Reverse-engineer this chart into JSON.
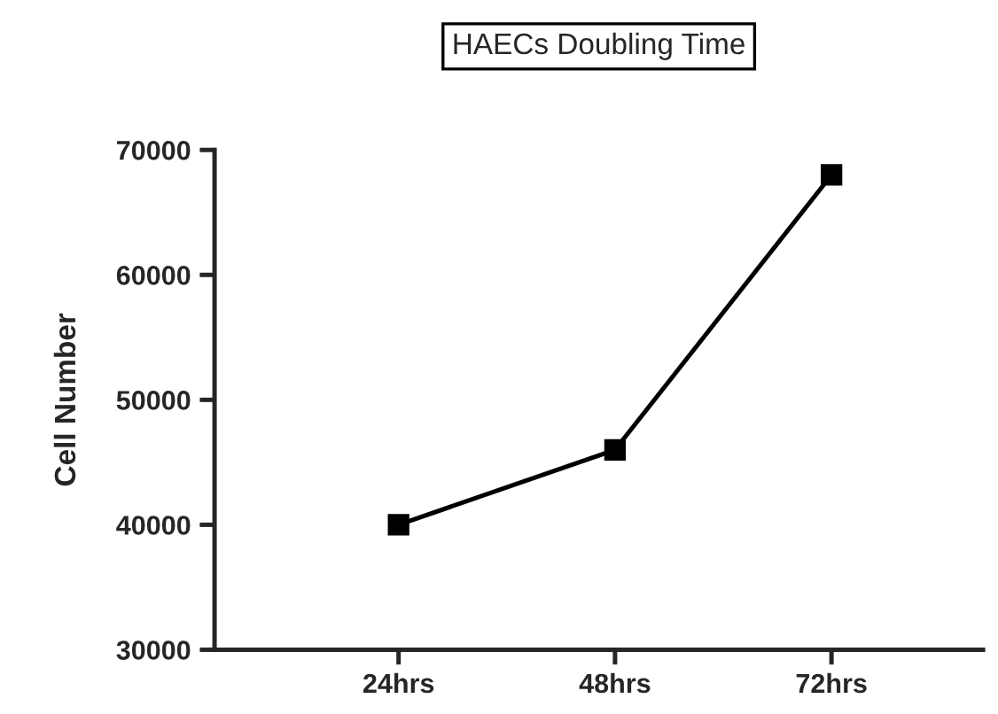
{
  "chart_data": {
    "type": "line",
    "title": "HAECs Doubling Time",
    "ylabel": "Cell Number",
    "categories": [
      "24hrs",
      "48hrs",
      "72hrs"
    ],
    "series": [
      {
        "color": "#000000",
        "values": [
          40000,
          46000,
          68000
        ]
      }
    ],
    "ylim": [
      30000,
      70000
    ],
    "yticks": [
      30000,
      40000,
      50000,
      60000,
      70000
    ],
    "marker": "square",
    "line_style": "solid",
    "grid": false
  }
}
